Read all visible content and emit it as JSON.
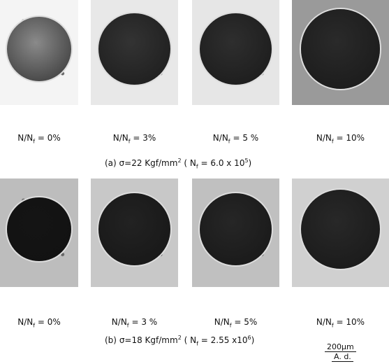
{
  "panels": [
    {
      "caption": {
        "label": "(a)",
        "stress": "σ=22 Kgf/mm",
        "stress_sup": "2",
        "life_open": "( N",
        "life_sub": "f",
        "life_eq": "= 6.0 x 10",
        "life_sup": "5",
        "close": ")"
      },
      "images": [
        {
          "label": "N/N",
          "sub": "f",
          "value": "= 0%"
        },
        {
          "label": "N/N",
          "sub": "f",
          "value": "= 3%"
        },
        {
          "label": "N/N",
          "sub": "f",
          "value": "= 5 %"
        },
        {
          "label": "N/N",
          "sub": "f",
          "value": "= 10%"
        }
      ]
    },
    {
      "caption": {
        "label": "(b)",
        "stress": "σ=18 Kgf/mm",
        "stress_sup": "2",
        "life_open": "( N",
        "life_sub": "f",
        "life_eq": "= 2.55 x10",
        "life_sup": "6",
        "close": ")"
      },
      "images": [
        {
          "label": "N/N",
          "sub": "f",
          "value": "= 0%"
        },
        {
          "label": "N/N",
          "sub": "f",
          "value": "= 3 %"
        },
        {
          "label": "N/N",
          "sub": "f",
          "value": "= 5%"
        },
        {
          "label": "N/N",
          "sub": "f",
          "value": "= 10%"
        }
      ]
    }
  ],
  "scale_bar": "200μm",
  "direction": "A. d."
}
